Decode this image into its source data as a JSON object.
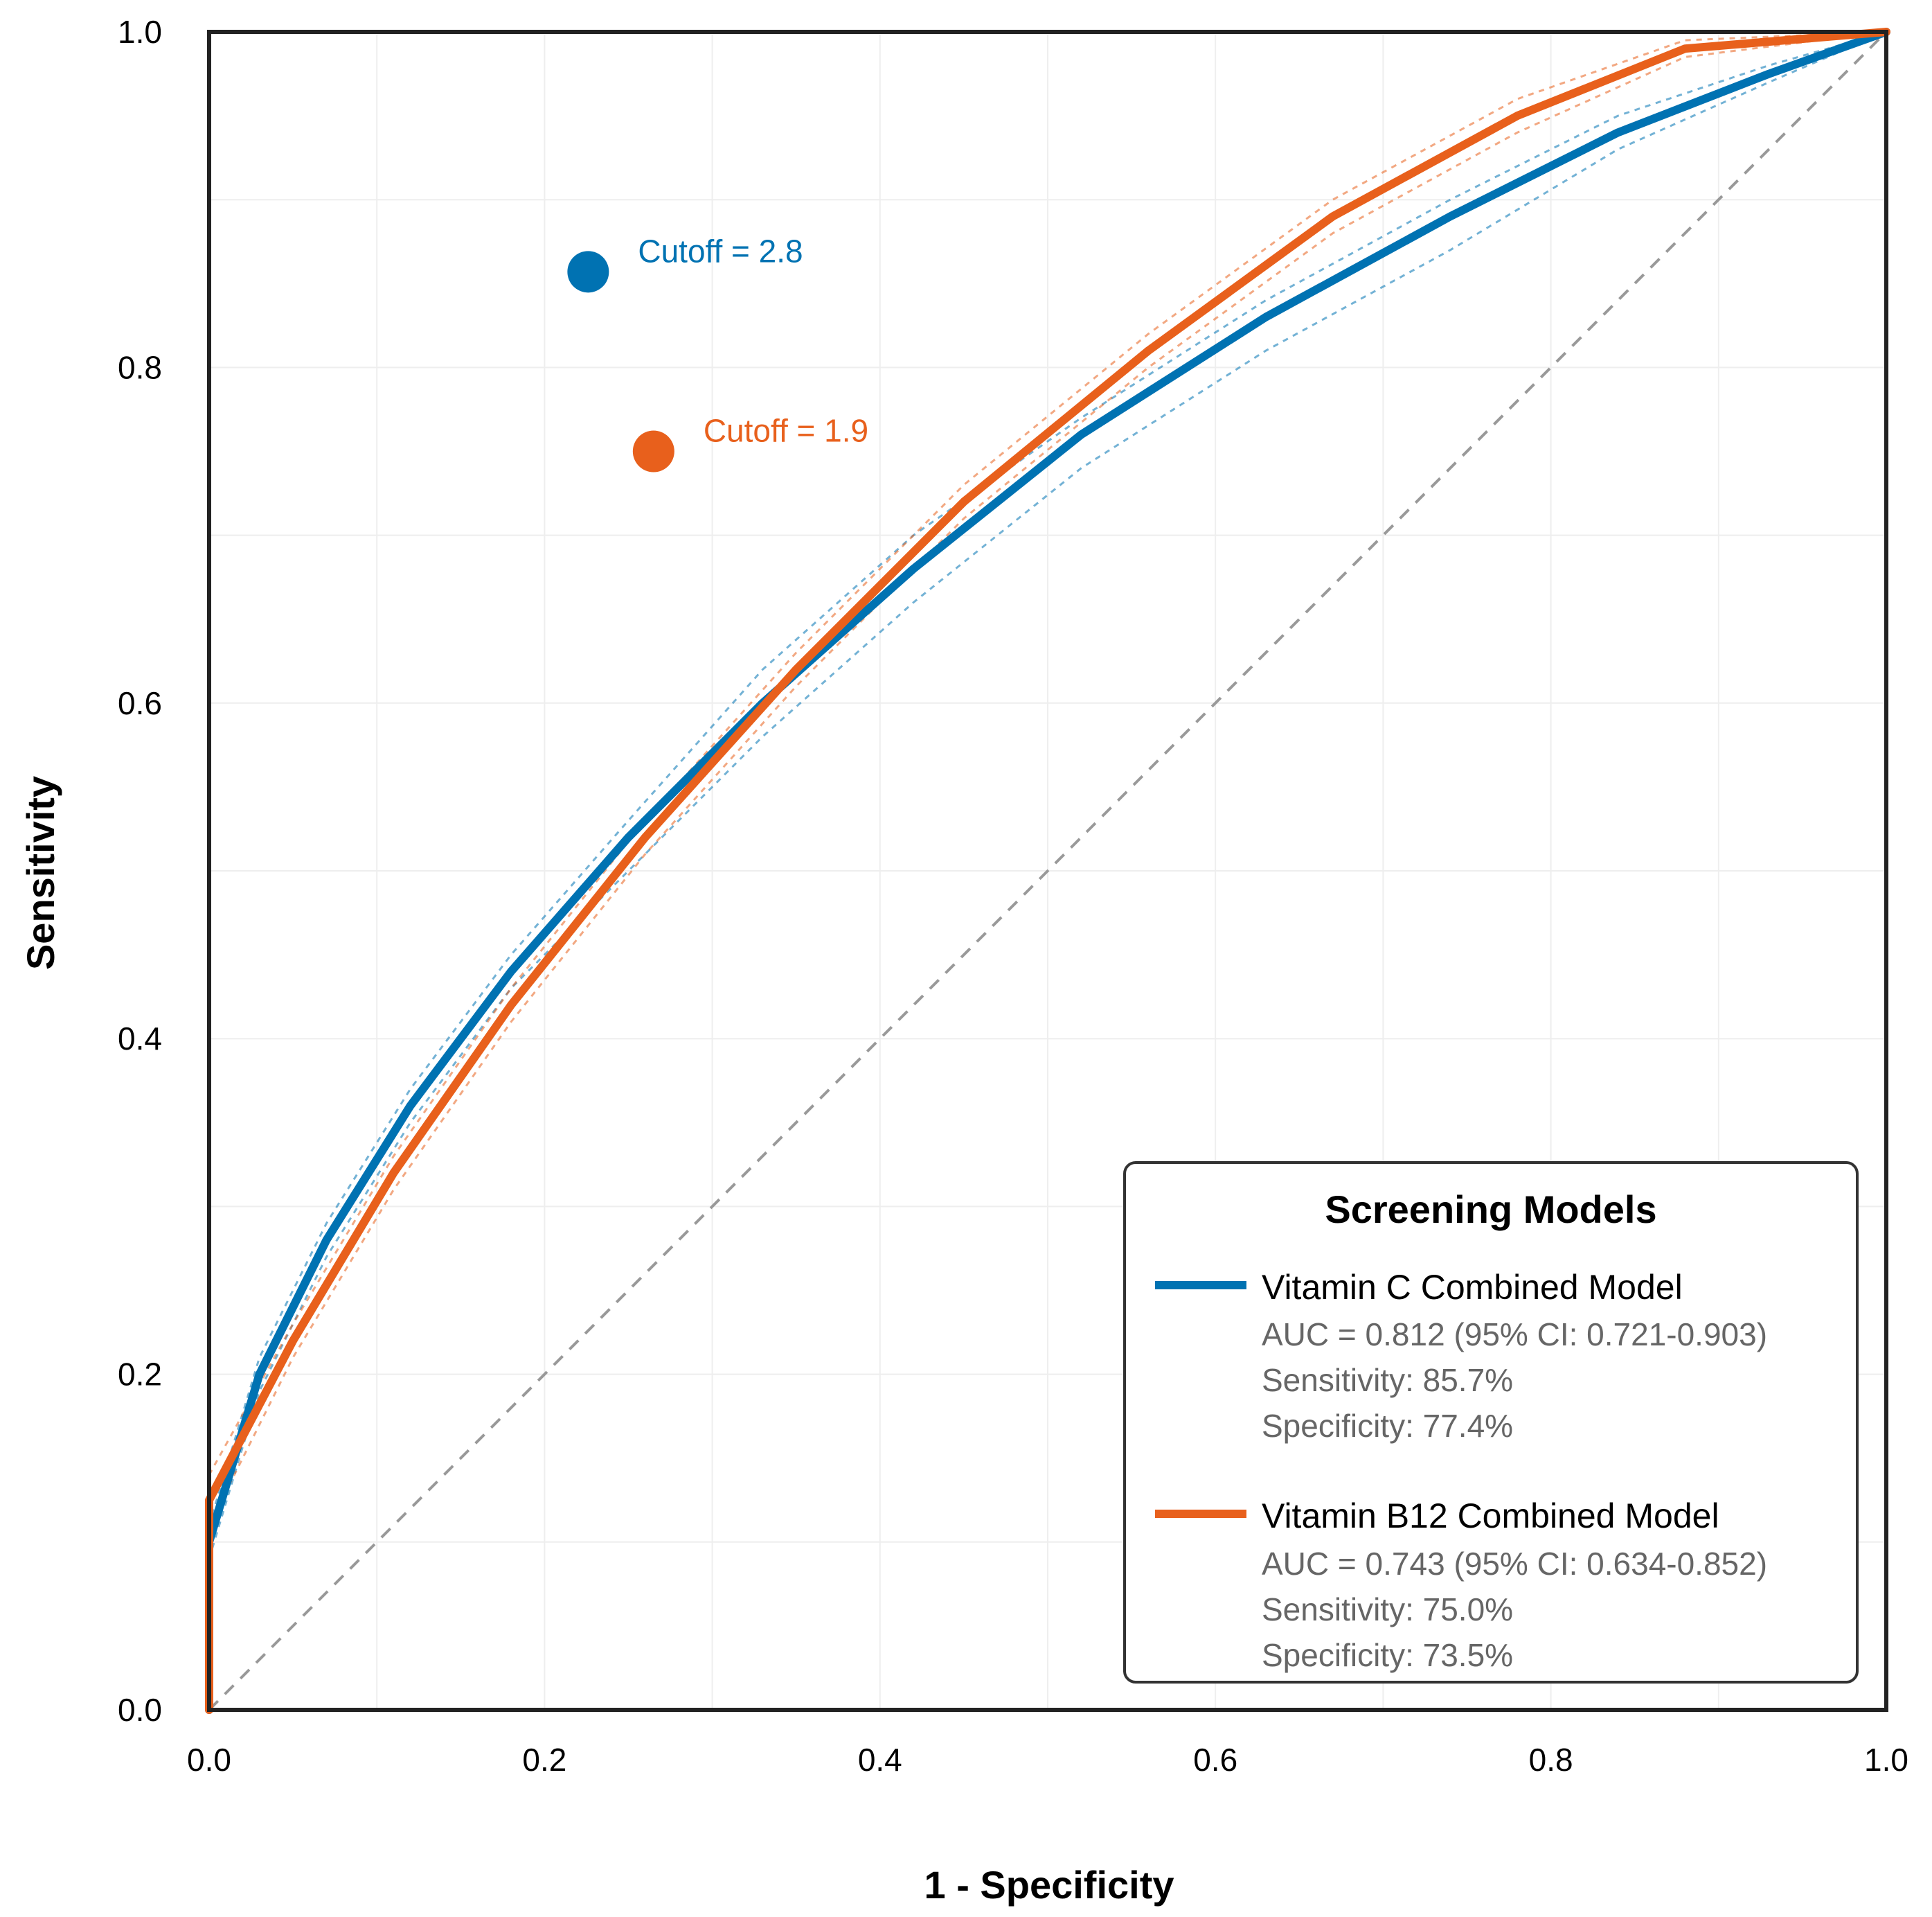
{
  "chart_data": {
    "type": "line",
    "title": "",
    "xlabel": "1 - Specificity",
    "ylabel": "Sensitivity",
    "xlim": [
      0,
      1
    ],
    "ylim": [
      0,
      1
    ],
    "x_ticks": [
      "0.0",
      "0.2",
      "0.4",
      "0.6",
      "0.8",
      "1.0"
    ],
    "y_ticks": [
      "0.0",
      "0.2",
      "0.4",
      "0.6",
      "0.8",
      "1.0"
    ],
    "grid": true,
    "reference_line": "diagonal",
    "legend_placement": "bottom-right",
    "legend_title": "Screening Models",
    "series": [
      {
        "name": "Vitamin C Combined Model",
        "color": "#0072B2",
        "auc_text": "AUC = 0.812 (95% CI: 0.721-0.903)",
        "sensitivity_text": "Sensitivity: 85.7%",
        "specificity_text": "Specificity: 77.4%",
        "x": [
          0,
          0,
          0.03,
          0.07,
          0.12,
          0.18,
          0.25,
          0.33,
          0.42,
          0.52,
          0.63,
          0.74,
          0.84,
          0.93,
          1.0
        ],
        "y": [
          0,
          0.1,
          0.2,
          0.28,
          0.36,
          0.44,
          0.52,
          0.6,
          0.68,
          0.76,
          0.83,
          0.89,
          0.94,
          0.975,
          1.0
        ],
        "ci_lower": [
          0.09,
          0.09,
          0.19,
          0.27,
          0.35,
          0.43,
          0.5,
          0.58,
          0.66,
          0.74,
          0.81,
          0.87,
          0.93,
          0.97,
          1.0
        ],
        "ci_upper": [
          0.11,
          0.11,
          0.21,
          0.29,
          0.37,
          0.45,
          0.53,
          0.62,
          0.7,
          0.77,
          0.84,
          0.9,
          0.95,
          0.98,
          1.0
        ],
        "cutoff": {
          "label": "Cutoff = 2.8",
          "x": 0.226,
          "y": 0.857
        }
      },
      {
        "name": "Vitamin B12 Combined Model",
        "color": "#E8601C",
        "auc_text": "AUC = 0.743 (95% CI: 0.634-0.852)",
        "sensitivity_text": "Sensitivity: 75.0%",
        "specificity_text": "Specificity: 73.5%",
        "x": [
          0,
          0,
          0.05,
          0.11,
          0.18,
          0.26,
          0.35,
          0.45,
          0.56,
          0.67,
          0.78,
          0.88,
          1.0
        ],
        "y": [
          0,
          0.125,
          0.22,
          0.32,
          0.42,
          0.52,
          0.62,
          0.72,
          0.81,
          0.89,
          0.95,
          0.99,
          1.0
        ],
        "ci_lower": [
          0.11,
          0.11,
          0.21,
          0.31,
          0.41,
          0.51,
          0.61,
          0.71,
          0.8,
          0.88,
          0.94,
          0.985,
          1.0
        ],
        "ci_upper": [
          0.14,
          0.14,
          0.23,
          0.33,
          0.43,
          0.53,
          0.63,
          0.73,
          0.82,
          0.9,
          0.96,
          0.995,
          1.0
        ],
        "cutoff": {
          "label": "Cutoff = 1.9",
          "x": 0.265,
          "y": 0.75
        }
      }
    ]
  }
}
